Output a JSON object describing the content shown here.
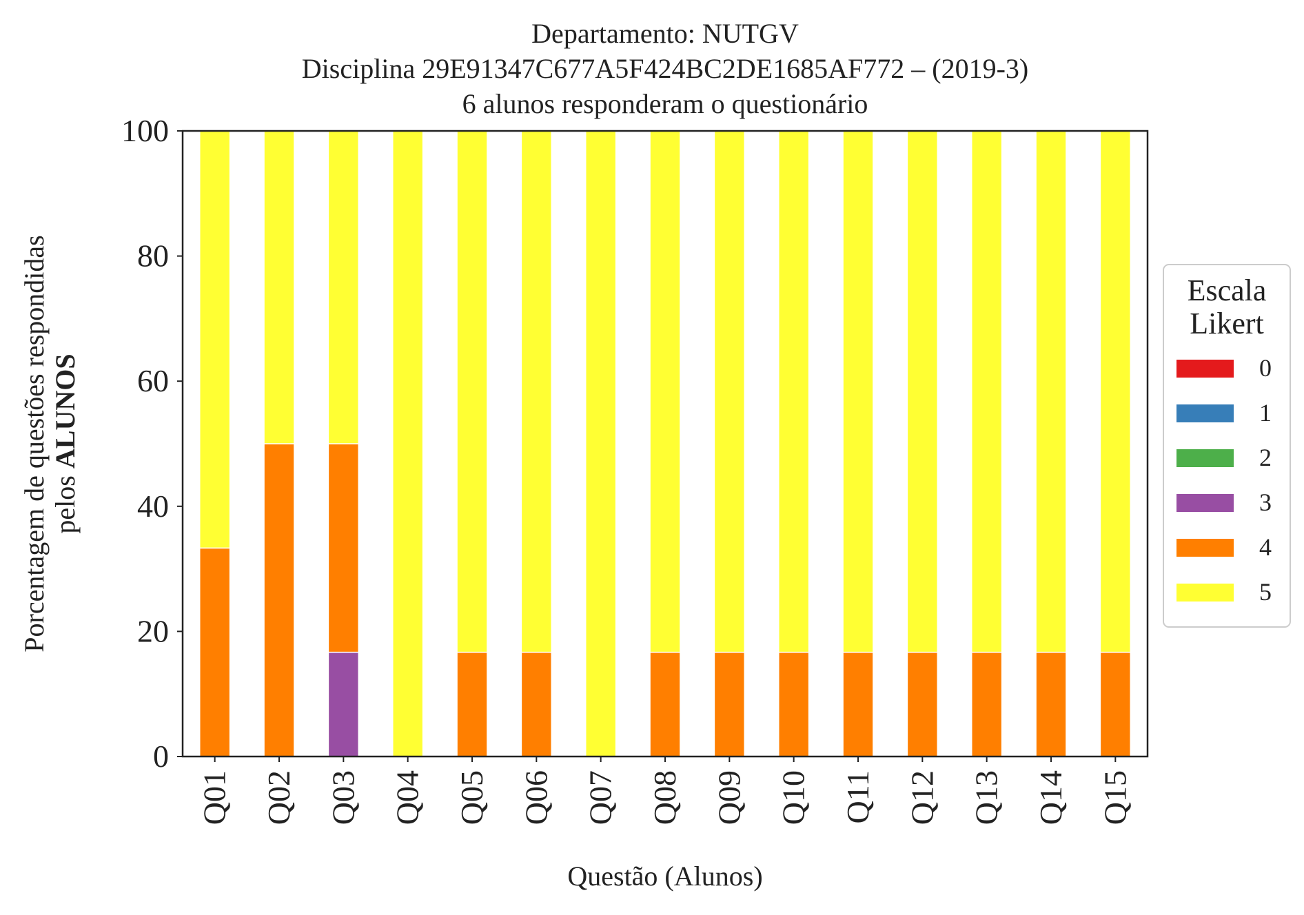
{
  "chart_data": {
    "type": "bar",
    "stacked": true,
    "title_lines": [
      "Departamento: NUTGV",
      "Disciplina 29E91347C677A5F424BC2DE1685AF772 – (2019-3)",
      "6 alunos responderam o questionário"
    ],
    "xlabel": "Questão (Alunos)",
    "ylabel_line1": "Porcentagem de questões respondidas",
    "ylabel_line2_prefix": "pelos ",
    "ylabel_line2_bold": "ALUNOS",
    "ylim": [
      0,
      100
    ],
    "yticks": [
      "0",
      "20",
      "40",
      "60",
      "80",
      "100"
    ],
    "grid": false,
    "legend_placement": "center-right outside",
    "legend_title_lines": [
      "Escala",
      "Likert"
    ],
    "categories": [
      "Q01",
      "Q02",
      "Q03",
      "Q04",
      "Q05",
      "Q06",
      "Q07",
      "Q08",
      "Q09",
      "Q10",
      "Q11",
      "Q12",
      "Q13",
      "Q14",
      "Q15"
    ],
    "series": [
      {
        "name": "0",
        "color": "#e41a1c",
        "values": [
          0,
          0,
          0,
          0,
          0,
          0,
          0,
          0,
          0,
          0,
          0,
          0,
          0,
          0,
          0
        ]
      },
      {
        "name": "1",
        "color": "#377eb8",
        "values": [
          0,
          0,
          0,
          0,
          0,
          0,
          0,
          0,
          0,
          0,
          0,
          0,
          0,
          0,
          0
        ]
      },
      {
        "name": "2",
        "color": "#4daf4a",
        "values": [
          0,
          0,
          0,
          0,
          0,
          0,
          0,
          0,
          0,
          0,
          0,
          0,
          0,
          0,
          0
        ]
      },
      {
        "name": "3",
        "color": "#984ea3",
        "values": [
          0,
          0,
          16.67,
          0,
          0,
          0,
          0,
          0,
          0,
          0,
          0,
          0,
          0,
          0,
          0
        ]
      },
      {
        "name": "4",
        "color": "#ff7f00",
        "values": [
          33.33,
          50,
          33.33,
          0,
          16.67,
          16.67,
          0,
          16.67,
          16.67,
          16.67,
          16.67,
          16.67,
          16.67,
          16.67,
          16.67
        ]
      },
      {
        "name": "5",
        "color": "#ffff33",
        "values": [
          66.67,
          50,
          50,
          100,
          83.33,
          83.33,
          100,
          83.33,
          83.33,
          83.33,
          83.33,
          83.33,
          83.33,
          83.33,
          83.33
        ]
      }
    ]
  }
}
